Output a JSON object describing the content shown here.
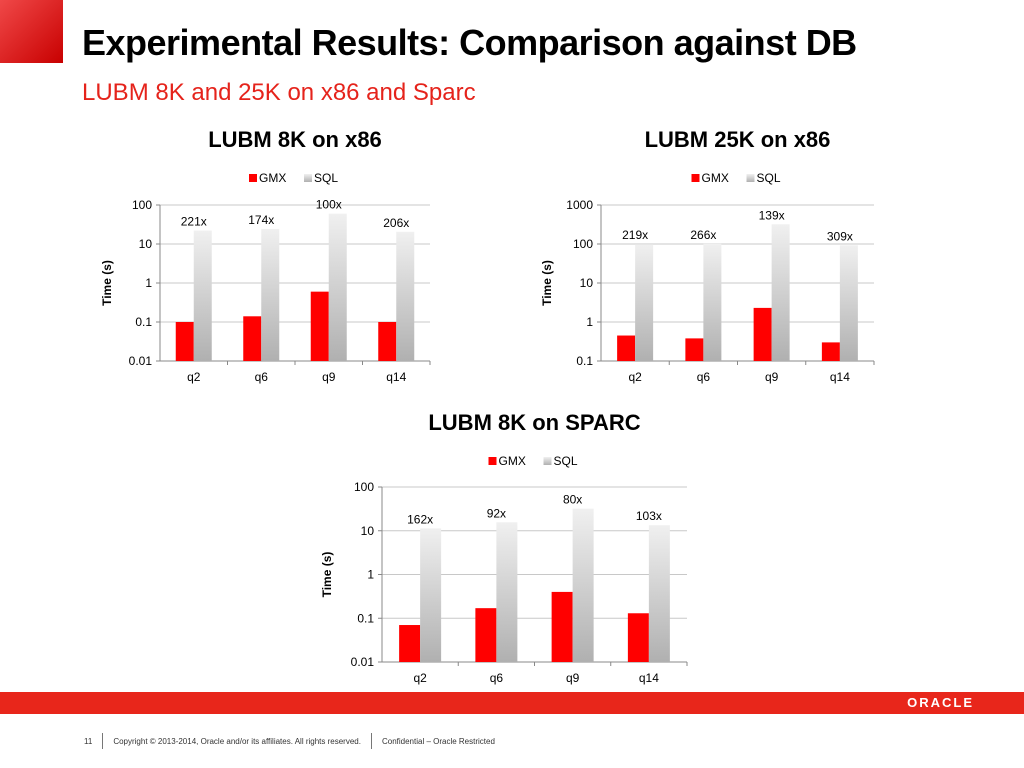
{
  "slide": {
    "title": "Experimental Results: Comparison against DB",
    "subtitle": "LUBM 8K and 25K on x86 and Sparc",
    "page_number": "11",
    "copyright": "Copyright © 2013-2014, Oracle and/or its affiliates. All rights reserved.",
    "classification": "Confidential – Oracle Restricted",
    "logo_text": "ORACLE",
    "accent_color": "#e5231b"
  },
  "chart_data": [
    {
      "type": "bar",
      "title": "LUBM 8K on x86",
      "ylabel": "Time (s)",
      "yscale": "log",
      "ylim": [
        0.01,
        100
      ],
      "yticks": [
        "0.01",
        "0.1",
        "1",
        "10",
        "100"
      ],
      "categories": [
        "q2",
        "q6",
        "q9",
        "q14"
      ],
      "series": [
        {
          "name": "GMX",
          "color": "#ff0000",
          "values": [
            0.1,
            0.14,
            0.6,
            0.1
          ]
        },
        {
          "name": "SQL",
          "color": "#c0c0c0",
          "values": [
            22.1,
            24.4,
            60,
            20.6
          ]
        }
      ],
      "ratio_labels": [
        "221x",
        "174x",
        "100x",
        "206x"
      ],
      "legend": "top",
      "grid": true
    },
    {
      "type": "bar",
      "title": "LUBM 25K on x86",
      "ylabel": "Time (s)",
      "yscale": "log",
      "ylim": [
        0.1,
        1000
      ],
      "yticks": [
        "0.1",
        "1",
        "10",
        "100",
        "1000"
      ],
      "categories": [
        "q2",
        "q6",
        "q9",
        "q14"
      ],
      "series": [
        {
          "name": "GMX",
          "color": "#ff0000",
          "values": [
            0.45,
            0.38,
            2.3,
            0.3
          ]
        },
        {
          "name": "SQL",
          "color": "#c0c0c0",
          "values": [
            98.6,
            101,
            320,
            92.7
          ]
        }
      ],
      "ratio_labels": [
        "219x",
        "266x",
        "139x",
        "309x"
      ],
      "legend": "top",
      "grid": true
    },
    {
      "type": "bar",
      "title": "LUBM 8K on SPARC",
      "ylabel": "Time (s)",
      "yscale": "log",
      "ylim": [
        0.01,
        100
      ],
      "yticks": [
        "0.01",
        "0.1",
        "1",
        "10",
        "100"
      ],
      "categories": [
        "q2",
        "q6",
        "q9",
        "q14"
      ],
      "series": [
        {
          "name": "GMX",
          "color": "#ff0000",
          "values": [
            0.07,
            0.17,
            0.4,
            0.13
          ]
        },
        {
          "name": "SQL",
          "color": "#c0c0c0",
          "values": [
            11.3,
            15.6,
            32,
            13.4
          ]
        }
      ],
      "ratio_labels": [
        "162x",
        "92x",
        "80x",
        "103x"
      ],
      "legend": "top",
      "grid": true
    }
  ]
}
